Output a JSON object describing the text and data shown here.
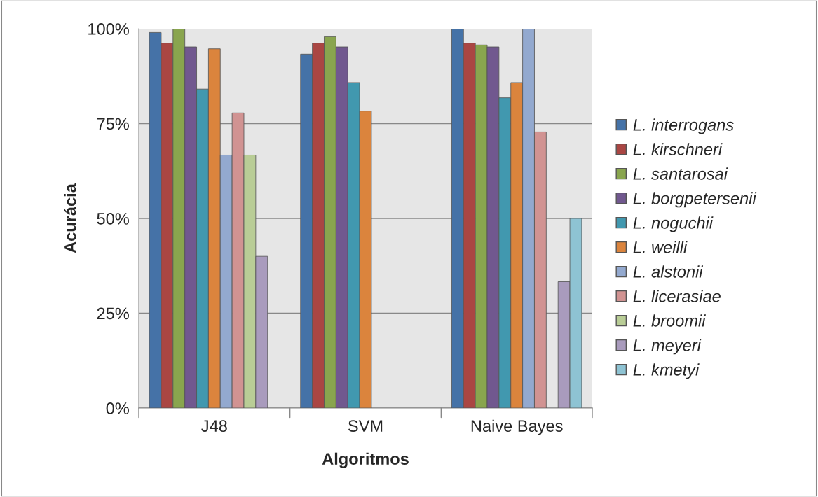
{
  "chart_data": {
    "type": "bar",
    "xlabel": "Algoritmos",
    "ylabel": "Acurácia",
    "categories": [
      "J48",
      "SVM",
      "Naive Bayes"
    ],
    "series": [
      {
        "name": "L. interrogans",
        "color": "#4572a7",
        "values": [
          99,
          93.3,
          100
        ]
      },
      {
        "name": "L. kirschneri",
        "color": "#aa4643",
        "values": [
          96.2,
          96.2,
          96.2
        ]
      },
      {
        "name": "L. santarosai",
        "color": "#89a54e",
        "values": [
          100,
          97.9,
          95.7
        ]
      },
      {
        "name": "L. borgpetersenii",
        "color": "#71588f",
        "values": [
          95.2,
          95.2,
          95.2
        ]
      },
      {
        "name": "L. noguchii",
        "color": "#4198af",
        "values": [
          84.1,
          85.8,
          81.8
        ]
      },
      {
        "name": "L. weilli",
        "color": "#db843d",
        "values": [
          94.7,
          78.3,
          85.8
        ]
      },
      {
        "name": "L. alstonii",
        "color": "#93a9cf",
        "values": [
          66.7,
          null,
          100
        ]
      },
      {
        "name": "L. licerasiae",
        "color": "#d19392",
        "values": [
          77.8,
          null,
          72.8
        ]
      },
      {
        "name": "L. broomii",
        "color": "#b9cd96",
        "values": [
          66.7,
          null,
          null
        ]
      },
      {
        "name": "L. meyeri",
        "color": "#a99bbd",
        "values": [
          40,
          null,
          33.3
        ]
      },
      {
        "name": "L. kmetyi",
        "color": "#8ec3d3",
        "values": [
          null,
          null,
          50
        ]
      }
    ],
    "ylim": [
      0,
      100
    ],
    "yticks": [
      {
        "value": 0,
        "label": "0%"
      },
      {
        "value": 25,
        "label": "25%"
      },
      {
        "value": 50,
        "label": "50%"
      },
      {
        "value": 75,
        "label": "75%"
      },
      {
        "value": 100,
        "label": "100%"
      }
    ],
    "grid": "y",
    "legend": "right"
  }
}
